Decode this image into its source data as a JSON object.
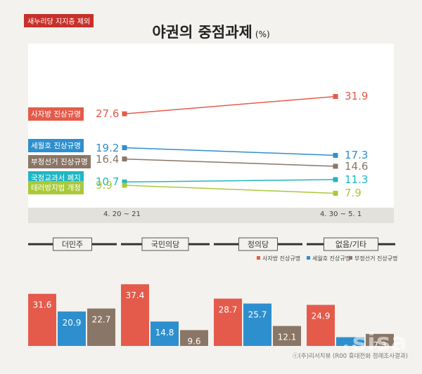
{
  "header": {
    "tag": "새누리당 지지층 제외",
    "title": "야권의 중점과제",
    "unit": "(%)"
  },
  "credit": "ⓒ(주)리서치뷰 (R00 휴대전화 정례조사결과)",
  "watermark": "sisa",
  "chart_data": [
    {
      "type": "line",
      "x": [
        "4. 20 ~ 21",
        "4. 30 ~ 5. 1"
      ],
      "series": [
        {
          "name": "사자방 진상규명",
          "values": [
            27.6,
            31.9
          ],
          "color": "#e45b4b"
        },
        {
          "name": "세월호 진상규명",
          "values": [
            19.2,
            17.3
          ],
          "color": "#2e8fce"
        },
        {
          "name": "부정선거 진상규명",
          "values": [
            16.4,
            14.6
          ],
          "color": "#8a7667"
        },
        {
          "name": "국정교과서 폐지",
          "values": [
            10.7,
            11.3
          ],
          "color": "#20b6c4"
        },
        {
          "name": "테러방지법 개정",
          "values": [
            9.9,
            7.9
          ],
          "color": "#a9c93a"
        }
      ]
    },
    {
      "type": "bar",
      "categories": [
        "더민주",
        "국민의당",
        "정의당",
        "없음/기타"
      ],
      "legend": [
        "사자방 진상규명",
        "세월호 진상규명",
        "부정선거 진상규명"
      ],
      "series": [
        {
          "name": "사자방 진상규명",
          "values": [
            31.6,
            37.4,
            28.7,
            24.9
          ],
          "color": "#e45b4b"
        },
        {
          "name": "세월호 진상규명",
          "values": [
            20.9,
            14.8,
            25.7,
            5.3
          ],
          "color": "#2e8fce"
        },
        {
          "name": "부정선거 진상규명",
          "values": [
            22.7,
            9.6,
            12.1,
            7.3
          ],
          "color": "#8a7667"
        }
      ]
    }
  ]
}
